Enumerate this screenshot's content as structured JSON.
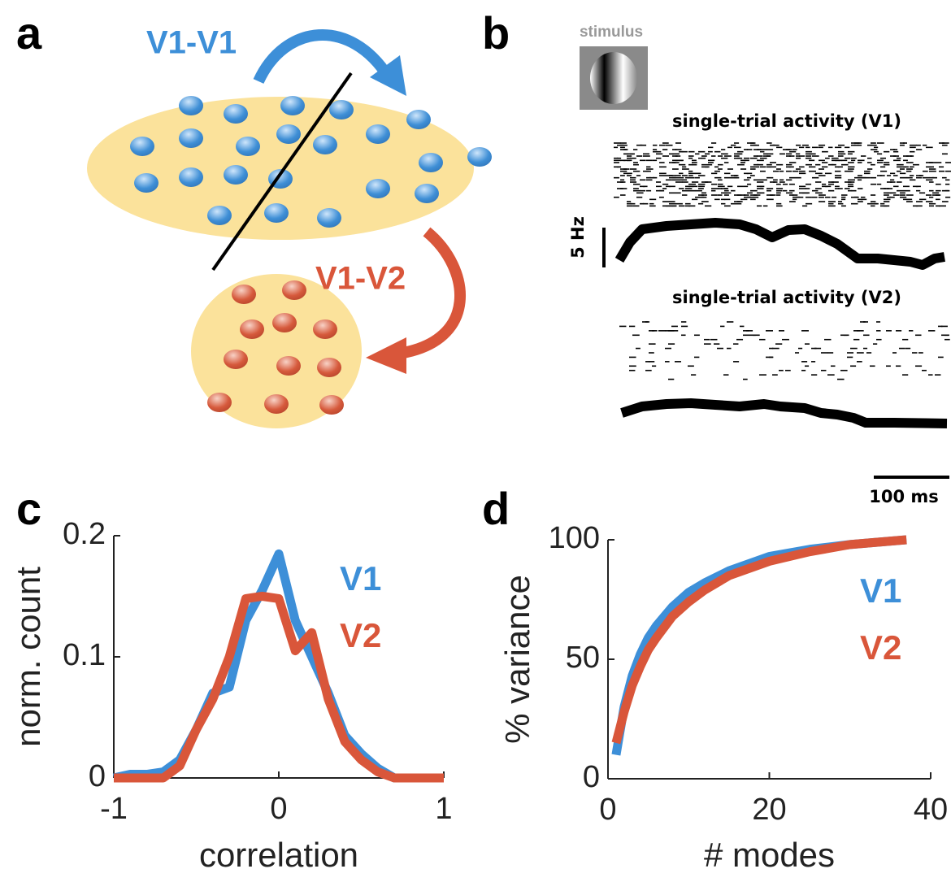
{
  "panels": {
    "a": {
      "letter": "a",
      "arrow_top": "V1-V1",
      "arrow_bottom": "V1-V2"
    },
    "b": {
      "letter": "b",
      "stimulus": "stimulus",
      "title_v1": "single-trial activity (V1)",
      "rate_scale": "5 Hz",
      "title_v2": "single-trial activity (V2)",
      "time_scale": "100 ms"
    },
    "c": {
      "letter": "c"
    },
    "d": {
      "letter": "d"
    }
  },
  "chart_data": [
    {
      "type": "line",
      "xlabel": "correlation",
      "ylabel": "norm. count",
      "x": [
        -1,
        -0.9,
        -0.8,
        -0.7,
        -0.6,
        -0.5,
        -0.4,
        -0.3,
        -0.2,
        -0.1,
        0,
        0.1,
        0.2,
        0.3,
        0.4,
        0.5,
        0.6,
        0.7,
        0.8,
        0.9,
        1
      ],
      "series": [
        {
          "name": "V1",
          "color": "#3d8fd8",
          "values": [
            0,
            0.003,
            0.003,
            0.005,
            0.015,
            0.04,
            0.07,
            0.075,
            0.13,
            0.155,
            0.185,
            0.13,
            0.1,
            0.07,
            0.035,
            0.02,
            0.008,
            0,
            0,
            0,
            0
          ]
        },
        {
          "name": "V2",
          "color": "#d9563a",
          "values": [
            0,
            0,
            0,
            0,
            0.01,
            0.04,
            0.065,
            0.1,
            0.148,
            0.15,
            0.148,
            0.105,
            0.12,
            0.065,
            0.03,
            0.015,
            0.005,
            0,
            0,
            0,
            0
          ]
        }
      ],
      "xlim": [
        -1,
        1
      ],
      "xticks": [
        -1,
        0,
        1
      ],
      "ylim": [
        0,
        0.2
      ],
      "yticks": [
        0,
        0.1,
        0.2
      ]
    },
    {
      "type": "line",
      "xlabel": "# modes",
      "ylabel": "% variance",
      "x": [
        1,
        2,
        3,
        4,
        5,
        6,
        8,
        10,
        12,
        15,
        20,
        25,
        30,
        37
      ],
      "series": [
        {
          "name": "V1",
          "color": "#3d8fd8",
          "values": [
            10,
            30,
            43,
            52,
            59,
            64,
            72,
            78,
            82,
            87,
            93,
            96,
            98,
            100
          ]
        },
        {
          "name": "V2",
          "color": "#d9563a",
          "values": [
            15,
            28,
            39,
            47,
            54,
            59,
            68,
            74,
            79,
            85,
            91,
            95,
            98,
            100
          ]
        }
      ],
      "xlim": [
        0,
        40
      ],
      "xticks": [
        0,
        20,
        40
      ],
      "ylim": [
        0,
        100
      ],
      "yticks": [
        0,
        50,
        100
      ]
    }
  ]
}
